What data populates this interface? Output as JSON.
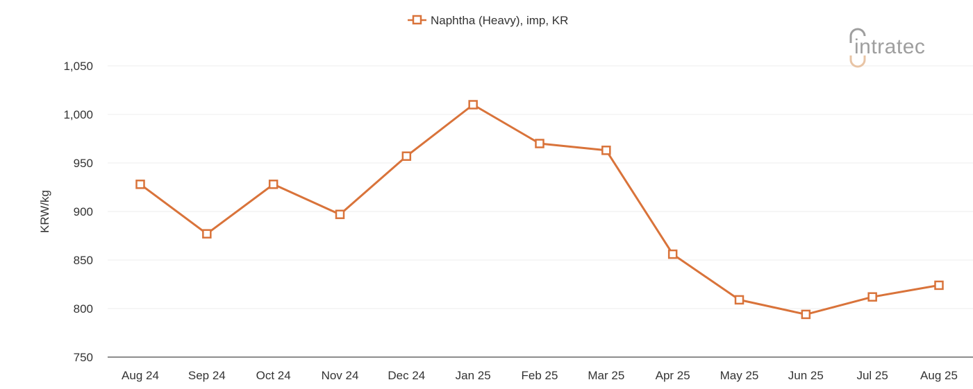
{
  "legend": {
    "label": "Naphtha (Heavy), imp, KR",
    "marker": "hollow-square"
  },
  "logo": {
    "text": "intratec"
  },
  "colors": {
    "series": "#D9733A",
    "grid": "#eeeeee",
    "axis": "#666666",
    "logo_gray": "#9e9e9e",
    "logo_accent": "#e8c4a5"
  },
  "chart_data": {
    "type": "line",
    "title": "",
    "xlabel": "",
    "ylabel": "KRW/kg",
    "categories": [
      "Aug 24",
      "Sep 24",
      "Oct 24",
      "Nov 24",
      "Dec 24",
      "Jan 25",
      "Feb 25",
      "Mar 25",
      "Apr 25",
      "May 25",
      "Jun 25",
      "Jul 25",
      "Aug 25"
    ],
    "series": [
      {
        "name": "Naphtha (Heavy), imp, KR",
        "values": [
          928,
          877,
          928,
          897,
          957,
          1010,
          970,
          963,
          856,
          809,
          794,
          812,
          824
        ]
      }
    ],
    "ylim": [
      750,
      1050
    ],
    "yticks": [
      750,
      800,
      850,
      900,
      950,
      1000,
      1050
    ],
    "ytick_labels": [
      "750",
      "800",
      "850",
      "900",
      "950",
      "1,000",
      "1,050"
    ],
    "grid": true,
    "legend_position": "top-center"
  }
}
